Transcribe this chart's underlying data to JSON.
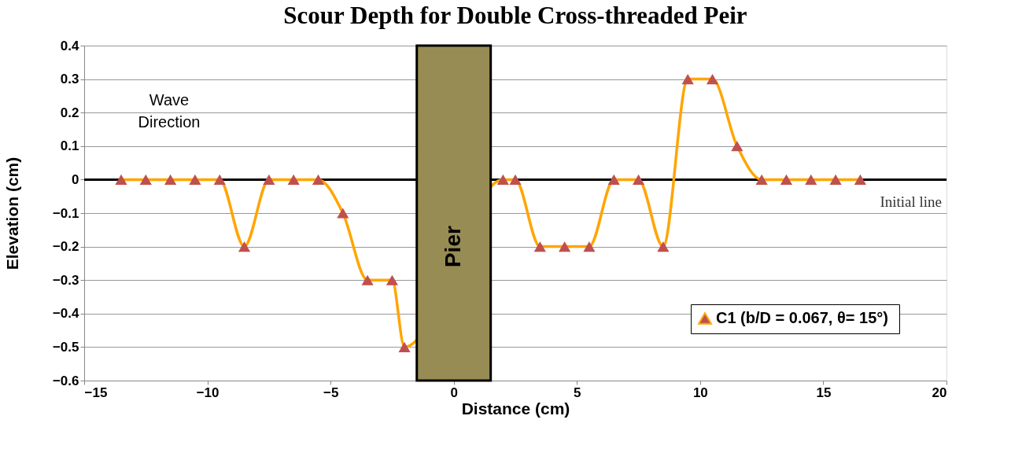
{
  "chart_data": {
    "type": "line",
    "title": "Scour Depth for Double Cross-threaded Peir",
    "xlabel": "Distance (cm)",
    "ylabel": "Elevation (cm)",
    "series": [
      {
        "name": "C1 (b/D = 0.067,  θ= 15°)",
        "color": "#ffa500",
        "x": [
          -13.5,
          -12.5,
          -11.5,
          -10.5,
          -9.5,
          -8.5,
          -7.5,
          -6.5,
          -5.5,
          -4.5,
          -3.5,
          -2.5,
          -2.0,
          2.0,
          2.5,
          3.5,
          4.5,
          5.5,
          6.5,
          7.5,
          8.5,
          9.5,
          10.5,
          11.5,
          12.5,
          13.5,
          14.5,
          15.5,
          16.5
        ],
        "values": [
          0,
          0,
          0,
          0,
          0,
          -0.2,
          0,
          0,
          0,
          -0.1,
          -0.3,
          -0.3,
          -0.5,
          0,
          0,
          -0.2,
          -0.2,
          -0.2,
          0,
          0,
          -0.2,
          0.3,
          0.3,
          0.1,
          0,
          0,
          0,
          0,
          0
        ]
      }
    ],
    "xlim": [
      -15,
      20
    ],
    "xticks": [
      -15,
      -10,
      -5,
      0,
      5,
      10,
      15,
      20
    ],
    "ylim": [
      -0.6,
      0.4
    ],
    "yticks": [
      -0.6,
      -0.5,
      -0.4,
      -0.3,
      -0.2,
      -0.1,
      0,
      0.1,
      0.2,
      0.3,
      0.4
    ],
    "grid": "y",
    "marker": "triangle",
    "line_style": "solid",
    "legend": "bottom right",
    "ref_lines": [
      {
        "axis": "y",
        "value": 0,
        "label": "Initial line",
        "color": "#000000"
      }
    ],
    "bands": [
      {
        "axis": "x",
        "from": -1.5,
        "to": 1.5,
        "label": "Pier",
        "color": "#978c54"
      }
    ],
    "annotations": [
      "Wave Direction"
    ]
  }
}
